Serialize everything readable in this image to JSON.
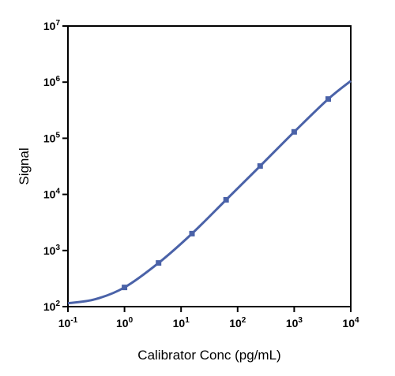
{
  "chart_data": {
    "type": "line",
    "title": "",
    "xlabel": "Calibrator Conc (pg/mL)",
    "ylabel": "Signal",
    "x_scale": "log",
    "y_scale": "log",
    "xlim": [
      0.1,
      10000
    ],
    "ylim": [
      100,
      10000000
    ],
    "x_tick_labels": [
      {
        "base": "10",
        "exp": "-1",
        "value": 0.1
      },
      {
        "base": "10",
        "exp": "0",
        "value": 1
      },
      {
        "base": "10",
        "exp": "1",
        "value": 10
      },
      {
        "base": "10",
        "exp": "2",
        "value": 100
      },
      {
        "base": "10",
        "exp": "3",
        "value": 1000
      },
      {
        "base": "10",
        "exp": "4",
        "value": 10000
      }
    ],
    "y_tick_labels": [
      {
        "base": "10",
        "exp": "2",
        "value": 100
      },
      {
        "base": "10",
        "exp": "3",
        "value": 1000
      },
      {
        "base": "10",
        "exp": "4",
        "value": 10000
      },
      {
        "base": "10",
        "exp": "5",
        "value": 100000
      },
      {
        "base": "10",
        "exp": "6",
        "value": 1000000
      },
      {
        "base": "10",
        "exp": "7",
        "value": 10000000
      }
    ],
    "grid": false,
    "legend": "none",
    "series": [
      {
        "points": [
          {
            "x": 1,
            "y": 220
          },
          {
            "x": 4,
            "y": 600
          },
          {
            "x": 15.6,
            "y": 2000
          },
          {
            "x": 62.5,
            "y": 8000
          },
          {
            "x": 250,
            "y": 32000
          },
          {
            "x": 1000,
            "y": 130000
          },
          {
            "x": 4000,
            "y": 500000
          }
        ],
        "fit_curve": [
          {
            "x": 0.1,
            "y": 115
          },
          {
            "x": 0.3,
            "y": 135
          },
          {
            "x": 1,
            "y": 220
          },
          {
            "x": 4,
            "y": 600
          },
          {
            "x": 15.6,
            "y": 2000
          },
          {
            "x": 62.5,
            "y": 8000
          },
          {
            "x": 250,
            "y": 32000
          },
          {
            "x": 1000,
            "y": 130000
          },
          {
            "x": 4000,
            "y": 500000
          },
          {
            "x": 10000,
            "y": 1050000
          }
        ]
      }
    ],
    "colors": {
      "series": "#4a62a8",
      "axis": "#000000"
    }
  }
}
